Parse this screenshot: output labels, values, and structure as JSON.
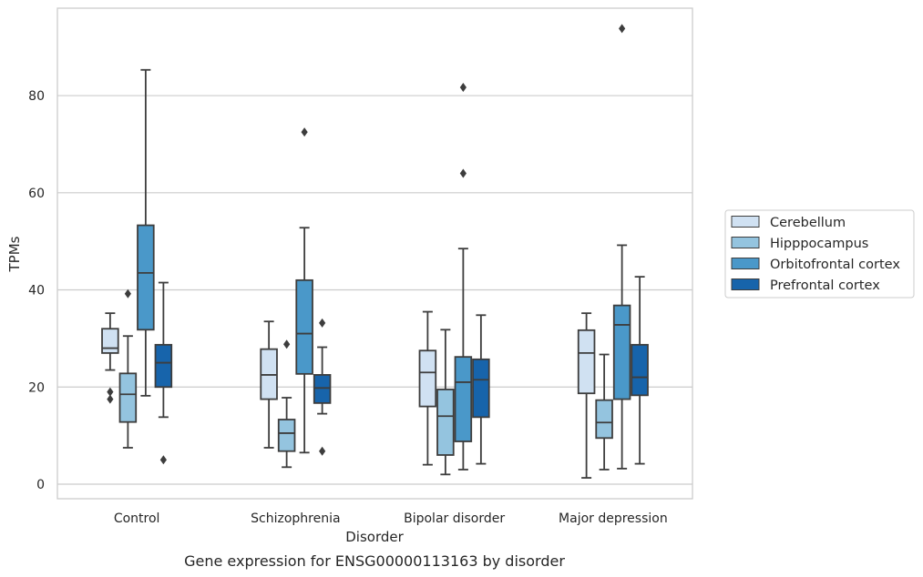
{
  "caption": "Gene expression for ENSG00000113163 by disorder",
  "chart_data": {
    "type": "box",
    "xlabel": "Disorder",
    "ylabel": "TPMs",
    "ylim": [
      -3,
      98
    ],
    "yticks": [
      0,
      20,
      40,
      60,
      80
    ],
    "grid": "horizontal",
    "legend_position": "right",
    "categories": [
      "Control",
      "Schizophrenia",
      "Bipolar disorder",
      "Major depression"
    ],
    "series": [
      {
        "name": "Cerebellum",
        "color": "#d0e1f2",
        "boxes": [
          {
            "whisker_low": 23.5,
            "q1": 27,
            "median": 28,
            "q3": 32,
            "whisker_high": 35.2,
            "outliers": [
              19,
              17.5
            ]
          },
          {
            "whisker_low": 7.5,
            "q1": 17.5,
            "median": 22.5,
            "q3": 27.8,
            "whisker_high": 33.5,
            "outliers": []
          },
          {
            "whisker_low": 4,
            "q1": 16,
            "median": 23,
            "q3": 27.5,
            "whisker_high": 35.5,
            "outliers": []
          },
          {
            "whisker_low": 1.3,
            "q1": 18.7,
            "median": 27,
            "q3": 31.7,
            "whisker_high": 35.2,
            "outliers": []
          }
        ]
      },
      {
        "name": "Hipppocampus",
        "color": "#94c4df",
        "boxes": [
          {
            "whisker_low": 7.5,
            "q1": 12.8,
            "median": 18.5,
            "q3": 22.8,
            "whisker_high": 30.5,
            "outliers": [
              39.2
            ]
          },
          {
            "whisker_low": 3.5,
            "q1": 6.8,
            "median": 10.5,
            "q3": 13.3,
            "whisker_high": 17.8,
            "outliers": [
              28.8
            ]
          },
          {
            "whisker_low": 2,
            "q1": 6,
            "median": 14,
            "q3": 19.5,
            "whisker_high": 31.8,
            "outliers": []
          },
          {
            "whisker_low": 3,
            "q1": 9.5,
            "median": 12.7,
            "q3": 17.3,
            "whisker_high": 26.7,
            "outliers": []
          }
        ]
      },
      {
        "name": "Orbitofrontal cortex",
        "color": "#4a98c9",
        "boxes": [
          {
            "whisker_low": 18.2,
            "q1": 31.8,
            "median": 43.5,
            "q3": 53.3,
            "whisker_high": 85.3,
            "outliers": []
          },
          {
            "whisker_low": 6.5,
            "q1": 22.7,
            "median": 31,
            "q3": 42,
            "whisker_high": 52.8,
            "outliers": [
              72.5
            ]
          },
          {
            "whisker_low": 3,
            "q1": 8.8,
            "median": 21,
            "q3": 26.2,
            "whisker_high": 48.5,
            "outliers": [
              81.7,
              64
            ]
          },
          {
            "whisker_low": 3.2,
            "q1": 17.5,
            "median": 32.8,
            "q3": 36.8,
            "whisker_high": 49.2,
            "outliers": [
              93.8
            ]
          }
        ]
      },
      {
        "name": "Prefrontal cortex",
        "color": "#1764ab",
        "boxes": [
          {
            "whisker_low": 13.8,
            "q1": 20,
            "median": 25,
            "q3": 28.7,
            "whisker_high": 41.5,
            "outliers": [
              5
            ]
          },
          {
            "whisker_low": 14.5,
            "q1": 16.7,
            "median": 19.8,
            "q3": 22.5,
            "whisker_high": 28.2,
            "outliers": [
              33.2,
              6.8
            ]
          },
          {
            "whisker_low": 4.2,
            "q1": 13.8,
            "median": 21.5,
            "q3": 25.7,
            "whisker_high": 34.8,
            "outliers": []
          },
          {
            "whisker_low": 4.2,
            "q1": 18.3,
            "median": 22,
            "q3": 28.7,
            "whisker_high": 42.7,
            "outliers": []
          }
        ]
      }
    ]
  }
}
